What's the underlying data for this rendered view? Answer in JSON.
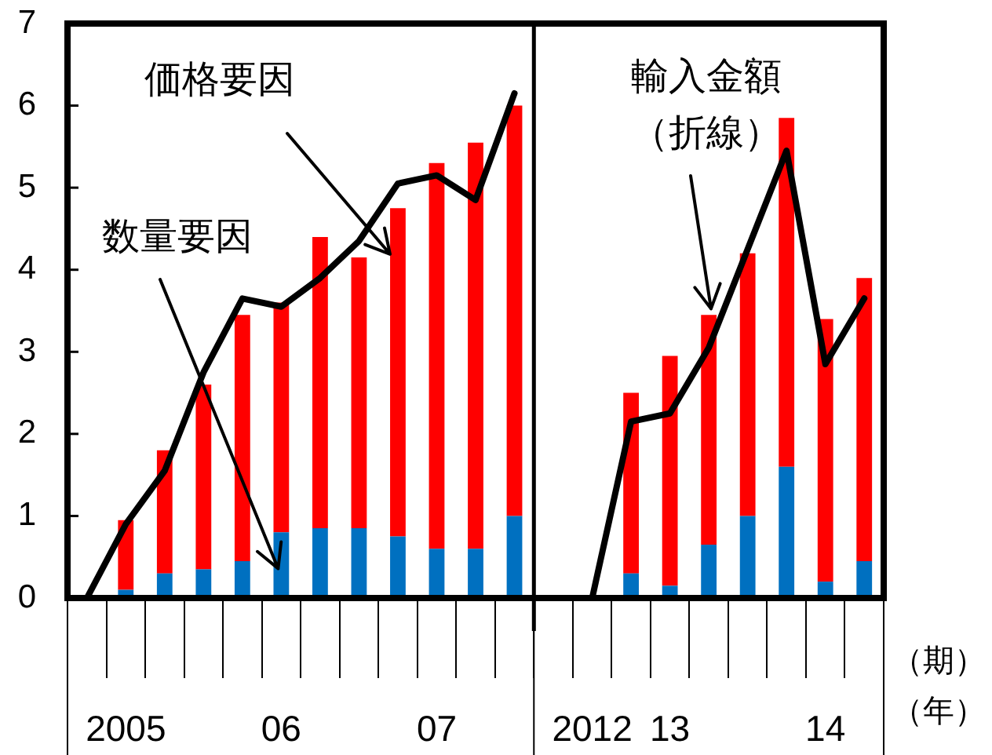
{
  "chart_data": {
    "type": "bar",
    "stacked": true,
    "categories": [
      null,
      "2005",
      null,
      null,
      null,
      "06",
      null,
      null,
      null,
      "07",
      null,
      null,
      null,
      "2012",
      null,
      "13",
      null,
      null,
      null,
      "14",
      null
    ],
    "series": [
      {
        "name": "数量要因",
        "color": "#0070c0",
        "values": [
          null,
          0.1,
          0.3,
          0.35,
          0.45,
          0.8,
          0.85,
          0.85,
          0.75,
          0.6,
          0.6,
          1,
          null,
          null,
          0.3,
          0.15,
          0.65,
          1,
          1.6,
          0.2,
          0.45
        ]
      },
      {
        "name": "価格要因",
        "color": "#ff0000",
        "values": [
          null,
          0.85,
          1.5,
          2.25,
          3,
          2.8,
          3.55,
          3.3,
          4,
          4.7,
          4.95,
          5,
          null,
          null,
          2.2,
          2.8,
          2.8,
          3.2,
          4.25,
          3.2,
          3.45
        ]
      },
      {
        "name": "輸入金額（折線）",
        "type": "line",
        "color": "#000000",
        "values": [
          0,
          0.9,
          1.55,
          2.75,
          3.65,
          3.55,
          3.9,
          4.35,
          5.05,
          5.15,
          4.85,
          6.15,
          null,
          0,
          2.15,
          2.25,
          3.05,
          4.25,
          5.45,
          2.85,
          3.65
        ]
      }
    ],
    "ylim": [
      0,
      7
    ],
    "yticks": [
      0,
      1,
      2,
      3,
      4,
      5,
      6,
      7
    ],
    "annotations": [
      "（期）",
      "（年）"
    ]
  }
}
